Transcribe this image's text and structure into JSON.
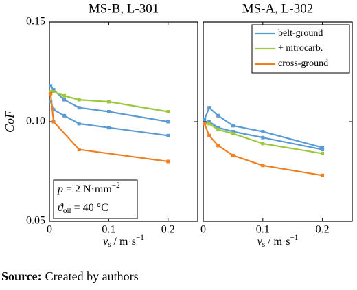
{
  "chart_data": [
    {
      "type": "line",
      "title": "MS-B, L-301",
      "ylabel": "CoF",
      "xlabel": {
        "main": "v",
        "sub": "s",
        "rest": " / m·s",
        "sup": "−1"
      },
      "xlim": [
        0,
        0.25
      ],
      "ylim": [
        0.05,
        0.15
      ],
      "xticks": [
        0,
        0.1,
        0.2
      ],
      "yticks": [
        0.05,
        {
          "value": 0.1,
          "label": "0.10"
        },
        0.15
      ],
      "show_ytick_labels": true,
      "annotation": [
        {
          "main": "p",
          "rest": " = 2 N·mm",
          "sup": "−2"
        },
        {
          "main": "ϑ",
          "sub": "oil",
          "rest": " = 40 °C"
        }
      ],
      "series": [
        {
          "name": "belt-ground",
          "color": "#5b9bd5",
          "x": [
            0.002,
            0.007,
            0.025,
            0.05,
            0.1,
            0.2
          ],
          "values": [
            0.118,
            0.116,
            0.111,
            0.107,
            0.105,
            0.1
          ]
        },
        {
          "name": "belt-ground",
          "color": "#5b9bd5",
          "x": [
            0.002,
            0.007,
            0.025,
            0.05,
            0.1,
            0.2
          ],
          "values": [
            0.11,
            0.106,
            0.103,
            0.099,
            0.097,
            0.093
          ]
        },
        {
          "name": "+ nitrocarb.",
          "color": "#9bc83c",
          "x": [
            0.002,
            0.007,
            0.025,
            0.05,
            0.1,
            0.2
          ],
          "values": [
            0.115,
            0.115,
            0.113,
            0.111,
            0.11,
            0.105
          ]
        },
        {
          "name": "cross-ground",
          "color": "#f07f22",
          "x": [
            0.002,
            0.007,
            0.05,
            0.2
          ],
          "values": [
            0.114,
            0.1,
            0.086,
            0.08
          ]
        }
      ]
    },
    {
      "type": "line",
      "title": "MS-A, L-302",
      "xlabel": {
        "main": "v",
        "sub": "s",
        "rest": " / m·s",
        "sup": "−1"
      },
      "xlim": [
        0,
        0.25
      ],
      "ylim": [
        0.05,
        0.15
      ],
      "xticks": [
        0,
        0.1,
        0.2
      ],
      "yticks": [
        0.05,
        0.1,
        0.15
      ],
      "show_ytick_labels": false,
      "legend": "upper right",
      "series": [
        {
          "name": "belt-ground",
          "color": "#5b9bd5",
          "x": [
            0.002,
            0.01,
            0.025,
            0.05,
            0.1,
            0.2
          ],
          "values": [
            0.101,
            0.107,
            0.103,
            0.098,
            0.095,
            0.087
          ]
        },
        {
          "name": "belt-ground",
          "color": "#5b9bd5",
          "x": [
            0.002,
            0.01,
            0.025,
            0.05,
            0.1,
            0.2
          ],
          "values": [
            0.099,
            0.1,
            0.097,
            0.095,
            0.092,
            0.086
          ]
        },
        {
          "name": "+ nitrocarb.",
          "color": "#9bc83c",
          "x": [
            0.002,
            0.01,
            0.025,
            0.05,
            0.1,
            0.2
          ],
          "values": [
            0.099,
            0.099,
            0.096,
            0.094,
            0.089,
            0.084
          ]
        },
        {
          "name": "cross-ground",
          "color": "#f07f22",
          "x": [
            0.002,
            0.01,
            0.025,
            0.05,
            0.1,
            0.2
          ],
          "values": [
            0.099,
            0.093,
            0.088,
            0.083,
            0.078,
            0.073
          ]
        }
      ]
    }
  ],
  "source": {
    "label": "Source:",
    "text": "Created by authors"
  }
}
